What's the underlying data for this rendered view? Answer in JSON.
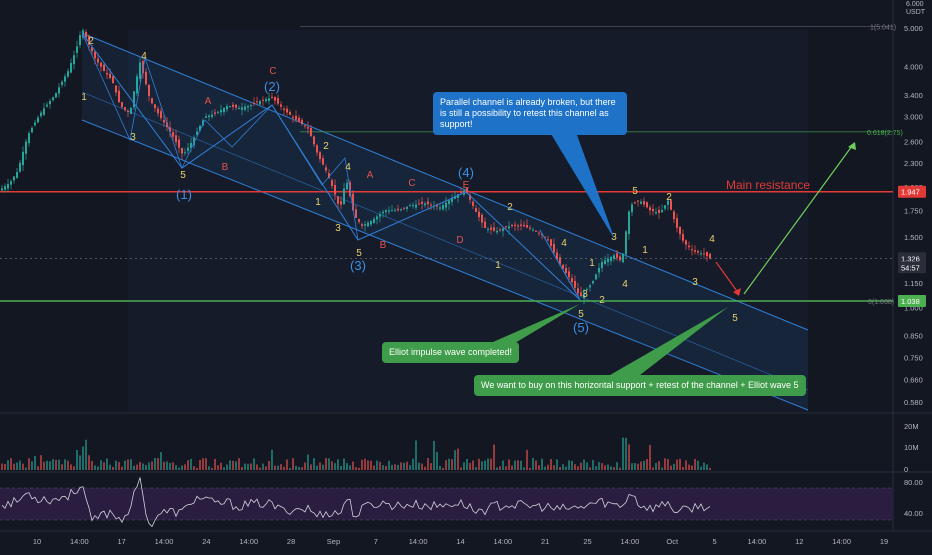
{
  "symbol_scale": {
    "top": "6.000",
    "currency": "USDT"
  },
  "price_axis": {
    "ticks": [
      5.0,
      4.0,
      3.4,
      3.0,
      2.6,
      2.3,
      2.0,
      1.75,
      1.5,
      1.15,
      1.0,
      0.85,
      0.75,
      0.66,
      0.58
    ],
    "tick_labels": [
      "5.000",
      "4.000",
      "3.400",
      "3.000",
      "2.600",
      "2.300",
      "2.000",
      "1.750",
      "1.500",
      "1.150",
      "1.000",
      "0.850",
      "0.750",
      "0.660",
      "0.580"
    ],
    "badges": [
      {
        "value": 1.947,
        "label": "1.947",
        "color": "#e23a36"
      },
      {
        "value": 1.326,
        "label": "1.326",
        "color": "#ffffff"
      },
      {
        "value": 1.26,
        "label": "54:57",
        "color": "#ffffff"
      },
      {
        "value": 1.038,
        "label": "1.038",
        "color": "#4caf50"
      }
    ]
  },
  "time_axis": {
    "labels": [
      "10",
      "14:00",
      "17",
      "14:00",
      "24",
      "14:00",
      "28",
      "Sep",
      "7",
      "14:00",
      "14",
      "14:00",
      "21",
      "25",
      "14:00",
      "Oct",
      "5",
      "14:00",
      "12",
      "14:00",
      "19"
    ],
    "positions": [
      0,
      0.5,
      1,
      1.5,
      2,
      2.5,
      3,
      3.5,
      4,
      4.5,
      5,
      5.5,
      6,
      6.5,
      7,
      7.5,
      8,
      8.5,
      9,
      9.5,
      10
    ]
  },
  "horizontal_levels": [
    {
      "label": "Main resistance",
      "value": 1.947,
      "color": "#e23a36"
    },
    {
      "label": "0(1.038)",
      "value": 1.038,
      "color": "#4caf50"
    },
    {
      "label": "0.618(2.75)",
      "value": 2.75,
      "color": "#4caf50"
    },
    {
      "label": "1(5.041)",
      "value": 5.041,
      "color": "#787b86"
    }
  ],
  "chart_data": [
    {
      "type": "candlestick",
      "title": "",
      "y_scale": "log",
      "ylim": [
        0.56,
        6.0
      ],
      "grid": false,
      "key_prices": {
        "high_wave2": 5.0,
        "low_wave_5_final": 1.05,
        "last": 1.326
      },
      "wave_labels_major": [
        "(1)",
        "(2)",
        "(3)",
        "(4)",
        "(5)"
      ],
      "wave_labels_minor": [
        "1",
        "2",
        "3",
        "4",
        "5",
        "A",
        "B",
        "C",
        "D",
        "E"
      ],
      "annotations": [
        {
          "id": "blue",
          "text": "Parallel channel is already broken, but there is still a possibility to retest this channel as support!"
        },
        {
          "id": "green1",
          "text": "Elliot impulse wave completed!"
        },
        {
          "id": "green2",
          "text": "We want to buy on this horizontal support + retest of the channel + Elliot wave 5"
        }
      ]
    },
    {
      "type": "bar",
      "title": "",
      "ylabels": [
        "20M",
        "10M",
        "0"
      ],
      "yticks": [
        20,
        10,
        0
      ],
      "unit": "M"
    },
    {
      "type": "line",
      "title": "",
      "ylabels": [
        "80.00",
        "40.00"
      ],
      "band": [
        40,
        80
      ]
    }
  ],
  "labels": {
    "main_resistance": "Main resistance",
    "callout_blue": "Parallel channel is already broken, but there is still a possibility to retest this channel as support!",
    "callout_green1": "Elliot impulse wave completed!",
    "callout_green2": "We want to buy on this horizontal support + retest of the channel + Elliot wave 5"
  },
  "colors": {
    "background": "#131722",
    "up": "#26a69a",
    "down": "#ef5350",
    "channel": "#2f7fd6",
    "resistance": "#e23a36",
    "support": "#4caf50",
    "rsi_line": "#d1d4dc",
    "rsi_band": "#2a1d3f"
  }
}
